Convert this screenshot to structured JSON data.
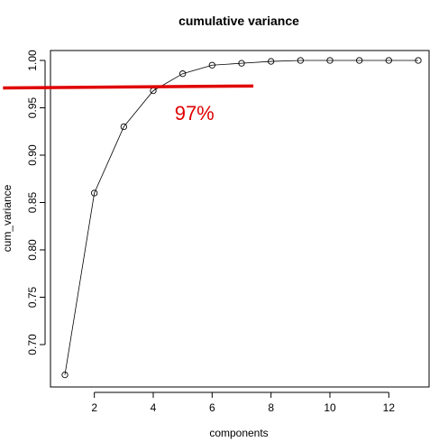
{
  "chart_data": {
    "type": "line",
    "title": "cumulative variance",
    "xlabel": "components",
    "ylabel": "cum_variance",
    "xlim": [
      1,
      13
    ],
    "ylim": [
      0.67,
      1.0
    ],
    "x_ticks": [
      2,
      4,
      6,
      8,
      10,
      12
    ],
    "y_ticks": [
      0.7,
      0.75,
      0.8,
      0.85,
      0.9,
      0.95,
      1.0
    ],
    "x_tick_labels": [
      "2",
      "4",
      "6",
      "8",
      "10",
      "12"
    ],
    "y_tick_labels": [
      "0.70",
      "0.75",
      "0.80",
      "0.85",
      "0.90",
      "0.95",
      "1.00"
    ],
    "grid": false,
    "marker": "open-circle",
    "x": [
      1,
      2,
      3,
      4,
      5,
      6,
      7,
      8,
      9,
      10,
      11,
      12,
      13
    ],
    "y": [
      0.668,
      0.86,
      0.93,
      0.968,
      0.986,
      0.995,
      0.997,
      0.999,
      1.0,
      1.0,
      1.0,
      1.0,
      1.0
    ],
    "annotations": {
      "threshold_line": {
        "x_start": 0.0,
        "x_end": 7.4,
        "y_start": 0.971,
        "y_end": 0.973,
        "color": "#e00000"
      },
      "threshold_text": {
        "text": "97%",
        "x": 5.4,
        "y": 0.937,
        "color": "#e00000"
      }
    }
  }
}
